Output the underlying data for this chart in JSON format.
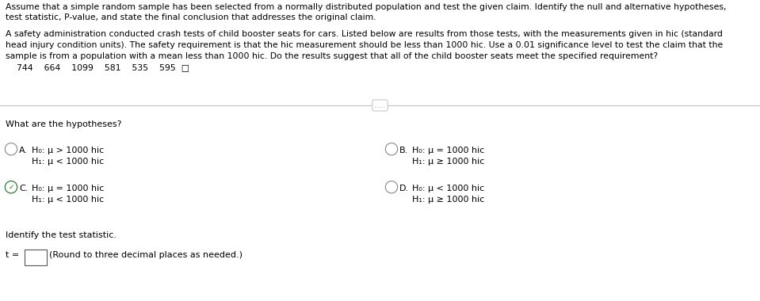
{
  "bg_color": "#ffffff",
  "text_color": "#000000",
  "fig_width": 9.59,
  "fig_height": 3.8,
  "intro_line1": "Assume that a simple random sample has been selected from a normally distributed population and test the given claim. Identify the null and alternative hypotheses,",
  "intro_line2": "test statistic, P-value, and state the final conclusion that addresses the original claim.",
  "para_line1": "A safety administration conducted crash tests of child booster seats for cars. Listed below are results from those tests, with the measurements given in hic (standard",
  "para_line2": "head injury condition units). The safety requirement is that the hic measurement should be less than 1000 hic. Use a 0.01 significance level to test the claim that the",
  "para_line3": "sample is from a population with a mean less than 1000 hic. Do the results suggest that all of the child booster seats meet the specified requirement?",
  "data_values": "    744    664    1099    581    535    595  □",
  "divider_dots": ".....",
  "question_hypotheses": "What are the hypotheses?",
  "optA_line1": "H₀: μ > 1000 hic",
  "optA_line2": "H₁: μ < 1000 hic",
  "optB_line1": "H₀: μ = 1000 hic",
  "optB_line2": "H₁: μ ≥ 1000 hic",
  "optC_line1": "H₀: μ = 1000 hic",
  "optC_line2": "H₁: μ < 1000 hic",
  "optD_line1": "H₀: μ < 1000 hic",
  "optD_line2": "H₁: μ ≥ 1000 hic",
  "identify_stat": "Identify the test statistic.",
  "selected_option": "C",
  "font_size_small": 7.8,
  "font_size_opt": 8.0,
  "circle_r": 0.008
}
